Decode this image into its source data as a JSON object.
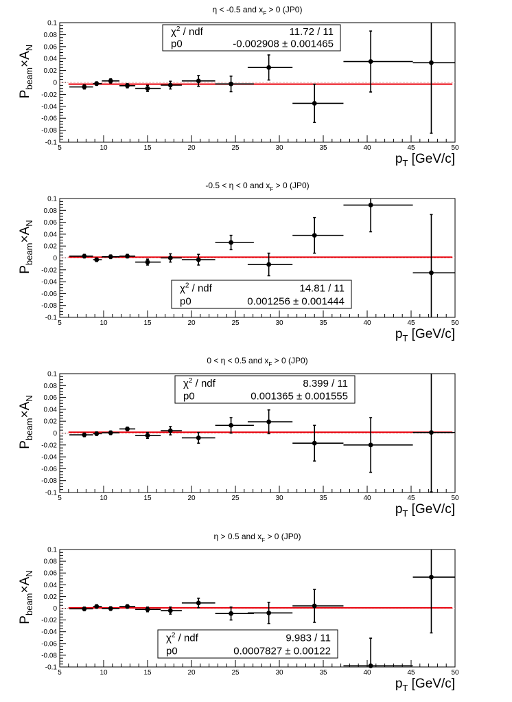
{
  "colors": {
    "fit_line": "#e8000b",
    "points": "#000000",
    "frame": "#000000",
    "background": "#ffffff"
  },
  "chart_data": [
    {
      "type": "scatter",
      "title": "η < -0.5 and x_F > 0 (JP0)",
      "title_parts": {
        "pre": "η < -0.5 and x",
        "sub": "F",
        "post": " > 0 (JP0)"
      },
      "xlabel": {
        "main": "p",
        "sub": "T",
        "rest": " [GeV/c]"
      },
      "ylabel": {
        "p1": "P",
        "s1": "beam",
        "p2": "×A",
        "s2": "N"
      },
      "xlim": [
        5,
        50
      ],
      "ylim": [
        -0.1,
        0.1
      ],
      "xticks": [
        "5",
        "10",
        "15",
        "20",
        "25",
        "30",
        "35",
        "40",
        "45",
        "50"
      ],
      "yticks": [
        "-0.1",
        "-0.08",
        "-0.06",
        "-0.04",
        "-0.02",
        "0",
        "0.02",
        "0.04",
        "0.06",
        "0.08",
        "0.1"
      ],
      "grid": false,
      "stats_position": "top-center",
      "stats": {
        "chi2_label": "χ",
        "chi2_sup": "2",
        "chi2_rest": " / ndf",
        "chi2_value": "11.72 / 11",
        "p0_label": "p0",
        "p0_value": "-0.002908",
        "p0_error": "0.001465"
      },
      "fit": {
        "type": "constant",
        "value": -0.0029
      },
      "points": [
        {
          "x": 7.8,
          "xerr": [
            1.7,
            1.0
          ],
          "y": -0.0075,
          "yerr": 0.0035
        },
        {
          "x": 9.2,
          "xerr": [
            0.4,
            0.6
          ],
          "y": -0.002,
          "yerr": 0.003
        },
        {
          "x": 10.8,
          "xerr": [
            1.0,
            1.0
          ],
          "y": 0.0025,
          "yerr": 0.0035
        },
        {
          "x": 12.7,
          "xerr": [
            0.9,
            0.9
          ],
          "y": -0.0055,
          "yerr": 0.0035
        },
        {
          "x": 15.0,
          "xerr": [
            1.4,
            1.5
          ],
          "y": -0.01,
          "yerr": 0.005
        },
        {
          "x": 17.6,
          "xerr": [
            1.1,
            1.3
          ],
          "y": -0.0045,
          "yerr": 0.0065
        },
        {
          "x": 20.8,
          "xerr": [
            1.9,
            1.9
          ],
          "y": 0.0025,
          "yerr": 0.009
        },
        {
          "x": 24.5,
          "xerr": [
            1.8,
            2.6
          ],
          "y": -0.0025,
          "yerr": 0.013
        },
        {
          "x": 28.8,
          "xerr": [
            2.4,
            2.7
          ],
          "y": 0.025,
          "yerr": 0.021
        },
        {
          "x": 34.0,
          "xerr": [
            2.5,
            3.3
          ],
          "y": -0.035,
          "yerr": 0.032
        },
        {
          "x": 40.4,
          "xerr": [
            3.1,
            4.8
          ],
          "y": 0.035,
          "yerr": 0.051
        },
        {
          "x": 47.3,
          "xerr": [
            2.1,
            2.7
          ],
          "y": 0.033,
          "yerr": 0.118
        }
      ]
    },
    {
      "type": "scatter",
      "title": "-0.5 < η < 0 and x_F > 0 (JP0)",
      "title_parts": {
        "pre": "-0.5 < η < 0 and x",
        "sub": "F",
        "post": " > 0 (JP0)"
      },
      "xlabel": {
        "main": "p",
        "sub": "T",
        "rest": " [GeV/c]"
      },
      "ylabel": {
        "p1": "P",
        "s1": "beam",
        "p2": "×A",
        "s2": "N"
      },
      "xlim": [
        5,
        50
      ],
      "ylim": [
        -0.1,
        0.1
      ],
      "xticks": [
        "5",
        "10",
        "15",
        "20",
        "25",
        "30",
        "35",
        "40",
        "45",
        "50"
      ],
      "yticks": [
        "-0.1",
        "-0.08",
        "-0.06",
        "-0.04",
        "-0.02",
        "0",
        "0.02",
        "0.04",
        "0.06",
        "0.08",
        "0.1"
      ],
      "grid": false,
      "stats_position": "bottom-center",
      "stats": {
        "chi2_label": "χ",
        "chi2_sup": "2",
        "chi2_rest": " / ndf",
        "chi2_value": "14.81 / 11",
        "p0_label": "p0",
        "p0_value": "0.001256",
        "p0_error": "0.001444"
      },
      "fit": {
        "type": "constant",
        "value": 0.0013
      },
      "points": [
        {
          "x": 7.8,
          "xerr": [
            1.7,
            1.0
          ],
          "y": 0.003,
          "yerr": 0.003
        },
        {
          "x": 9.2,
          "xerr": [
            0.4,
            0.6
          ],
          "y": -0.003,
          "yerr": 0.003
        },
        {
          "x": 10.8,
          "xerr": [
            1.0,
            1.0
          ],
          "y": 0.002,
          "yerr": 0.003
        },
        {
          "x": 12.7,
          "xerr": [
            0.9,
            0.9
          ],
          "y": 0.003,
          "yerr": 0.003
        },
        {
          "x": 15.0,
          "xerr": [
            1.4,
            1.5
          ],
          "y": -0.007,
          "yerr": 0.005
        },
        {
          "x": 17.6,
          "xerr": [
            1.1,
            1.3
          ],
          "y": 0.0,
          "yerr": 0.007
        },
        {
          "x": 20.8,
          "xerr": [
            1.9,
            1.9
          ],
          "y": -0.003,
          "yerr": 0.009
        },
        {
          "x": 24.5,
          "xerr": [
            1.8,
            2.6
          ],
          "y": 0.026,
          "yerr": 0.012
        },
        {
          "x": 28.8,
          "xerr": [
            2.4,
            2.7
          ],
          "y": -0.011,
          "yerr": 0.019
        },
        {
          "x": 34.0,
          "xerr": [
            2.5,
            3.3
          ],
          "y": 0.038,
          "yerr": 0.03
        },
        {
          "x": 40.4,
          "xerr": [
            3.1,
            4.8
          ],
          "y": 0.089,
          "yerr": 0.045
        },
        {
          "x": 47.3,
          "xerr": [
            2.1,
            2.7
          ],
          "y": -0.025,
          "yerr": 0.098
        }
      ]
    },
    {
      "type": "scatter",
      "title": "0 < η < 0.5 and x_F > 0 (JP0)",
      "title_parts": {
        "pre": "0 < η < 0.5 and x",
        "sub": "F",
        "post": " > 0 (JP0)"
      },
      "xlabel": {
        "main": "p",
        "sub": "T",
        "rest": " [GeV/c]"
      },
      "ylabel": {
        "p1": "P",
        "s1": "beam",
        "p2": "×A",
        "s2": "N"
      },
      "xlim": [
        5,
        50
      ],
      "ylim": [
        -0.1,
        0.1
      ],
      "xticks": [
        "5",
        "10",
        "15",
        "20",
        "25",
        "30",
        "35",
        "40",
        "45",
        "50"
      ],
      "yticks": [
        "-0.1",
        "-0.08",
        "-0.06",
        "-0.04",
        "-0.02",
        "0",
        "0.02",
        "0.04",
        "0.06",
        "0.08",
        "0.1"
      ],
      "grid": false,
      "stats_position": "top-center",
      "stats": {
        "chi2_label": "χ",
        "chi2_sup": "2",
        "chi2_rest": " / ndf",
        "chi2_value": "8.399 / 11",
        "p0_label": "p0",
        "p0_value": "0.001365",
        "p0_error": "0.001555"
      },
      "fit": {
        "type": "constant",
        "value": 0.0014
      },
      "points": [
        {
          "x": 7.8,
          "xerr": [
            1.7,
            1.0
          ],
          "y": -0.003,
          "yerr": 0.003
        },
        {
          "x": 9.2,
          "xerr": [
            0.4,
            0.6
          ],
          "y": -0.001,
          "yerr": 0.003
        },
        {
          "x": 10.8,
          "xerr": [
            1.0,
            1.0
          ],
          "y": 0.0005,
          "yerr": 0.003
        },
        {
          "x": 12.7,
          "xerr": [
            0.9,
            0.9
          ],
          "y": 0.007,
          "yerr": 0.003
        },
        {
          "x": 15.0,
          "xerr": [
            1.4,
            1.5
          ],
          "y": -0.004,
          "yerr": 0.005
        },
        {
          "x": 17.6,
          "xerr": [
            1.1,
            1.3
          ],
          "y": 0.004,
          "yerr": 0.007
        },
        {
          "x": 20.8,
          "xerr": [
            1.9,
            1.9
          ],
          "y": -0.008,
          "yerr": 0.009
        },
        {
          "x": 24.5,
          "xerr": [
            1.8,
            2.6
          ],
          "y": 0.013,
          "yerr": 0.013
        },
        {
          "x": 28.8,
          "xerr": [
            2.4,
            2.7
          ],
          "y": 0.019,
          "yerr": 0.02
        },
        {
          "x": 34.0,
          "xerr": [
            2.5,
            3.3
          ],
          "y": -0.017,
          "yerr": 0.03
        },
        {
          "x": 40.4,
          "xerr": [
            3.1,
            4.8
          ],
          "y": -0.02,
          "yerr": 0.046
        },
        {
          "x": 47.3,
          "xerr": [
            2.1,
            2.7
          ],
          "y": 0.001,
          "yerr": 0.1
        }
      ]
    },
    {
      "type": "scatter",
      "title": "η > 0.5 and x_F > 0 (JP0)",
      "title_parts": {
        "pre": "η > 0.5 and x",
        "sub": "F",
        "post": " > 0 (JP0)"
      },
      "xlabel": {
        "main": "p",
        "sub": "T",
        "rest": " [GeV/c]"
      },
      "ylabel": {
        "p1": "P",
        "s1": "beam",
        "p2": "×A",
        "s2": "N"
      },
      "xlim": [
        5,
        50
      ],
      "ylim": [
        -0.1,
        0.1
      ],
      "xticks": [
        "5",
        "10",
        "15",
        "20",
        "25",
        "30",
        "35",
        "40",
        "45",
        "50"
      ],
      "yticks": [
        "-0.1",
        "-0.08",
        "-0.06",
        "-0.04",
        "-0.02",
        "0",
        "0.02",
        "0.04",
        "0.06",
        "0.08",
        "0.1"
      ],
      "grid": false,
      "stats_position": "bottom-center",
      "stats": {
        "chi2_label": "χ",
        "chi2_sup": "2",
        "chi2_rest": " / ndf",
        "chi2_value": "9.983 / 11",
        "p0_label": "p0",
        "p0_value": "0.0007827",
        "p0_error": "0.00122"
      },
      "fit": {
        "type": "constant",
        "value": 0.0008
      },
      "points": [
        {
          "x": 7.8,
          "xerr": [
            1.7,
            1.0
          ],
          "y": -0.001,
          "yerr": 0.003
        },
        {
          "x": 9.2,
          "xerr": [
            0.4,
            0.6
          ],
          "y": 0.003,
          "yerr": 0.003
        },
        {
          "x": 10.8,
          "xerr": [
            1.0,
            1.0
          ],
          "y": -0.0005,
          "yerr": 0.003
        },
        {
          "x": 12.7,
          "xerr": [
            0.9,
            0.9
          ],
          "y": 0.003,
          "yerr": 0.003
        },
        {
          "x": 15.0,
          "xerr": [
            1.4,
            1.5
          ],
          "y": -0.002,
          "yerr": 0.004
        },
        {
          "x": 17.6,
          "xerr": [
            1.1,
            1.3
          ],
          "y": -0.004,
          "yerr": 0.006
        },
        {
          "x": 20.8,
          "xerr": [
            1.9,
            1.9
          ],
          "y": 0.009,
          "yerr": 0.008
        },
        {
          "x": 24.5,
          "xerr": [
            1.8,
            2.6
          ],
          "y": -0.009,
          "yerr": 0.011
        },
        {
          "x": 28.8,
          "xerr": [
            2.4,
            2.7
          ],
          "y": -0.008,
          "yerr": 0.018
        },
        {
          "x": 34.0,
          "xerr": [
            2.5,
            3.3
          ],
          "y": 0.004,
          "yerr": 0.028
        },
        {
          "x": 40.4,
          "xerr": [
            3.1,
            4.8
          ],
          "y": -0.098,
          "yerr": 0.047
        },
        {
          "x": 47.3,
          "xerr": [
            2.1,
            2.7
          ],
          "y": 0.053,
          "yerr": 0.095
        }
      ]
    }
  ]
}
